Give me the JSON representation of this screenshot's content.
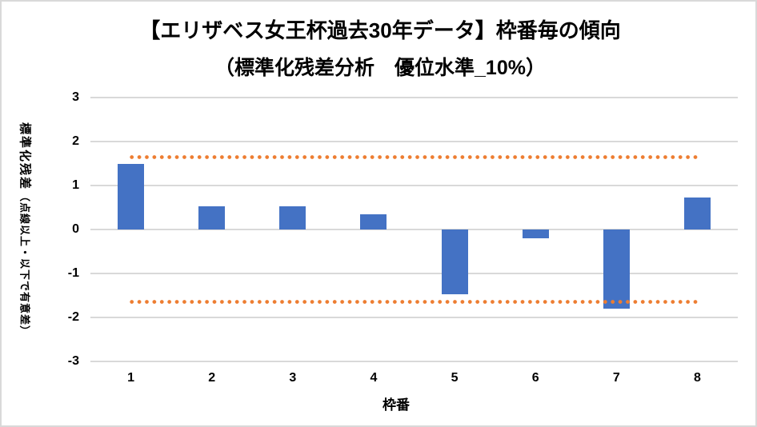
{
  "title": {
    "line1": "【エリザベス女王杯過去30年データ】枠番毎の傾向",
    "line2": "（標準化残差分析　優位水準_10%）"
  },
  "y_axis": {
    "title_main": "標準化残差",
    "title_sub": "（点線以上・以下で有意差）"
  },
  "x_axis": {
    "title": "枠番"
  },
  "chart_data": {
    "type": "bar",
    "title": "【エリザベス女王杯過去30年データ】枠番毎の傾向（標準化残差分析　優位水準_10%）",
    "xlabel": "枠番",
    "ylabel": "標準化残差（点線以上・以下で有意差）",
    "categories": [
      "1",
      "2",
      "3",
      "4",
      "5",
      "6",
      "7",
      "8"
    ],
    "values": [
      1.5,
      0.52,
      0.52,
      0.35,
      -1.48,
      -0.2,
      -1.8,
      0.72
    ],
    "ylim": [
      -3,
      3
    ],
    "yticks": [
      3,
      2,
      1,
      0,
      -1,
      -2,
      -3
    ],
    "threshold_upper": 1.65,
    "threshold_lower": -1.65,
    "grid": true,
    "legend": false,
    "bar_color": "#4472C4",
    "threshold_color": "#ED7D31",
    "gridline_color": "#D9D9D9",
    "text_color": "#000000"
  }
}
